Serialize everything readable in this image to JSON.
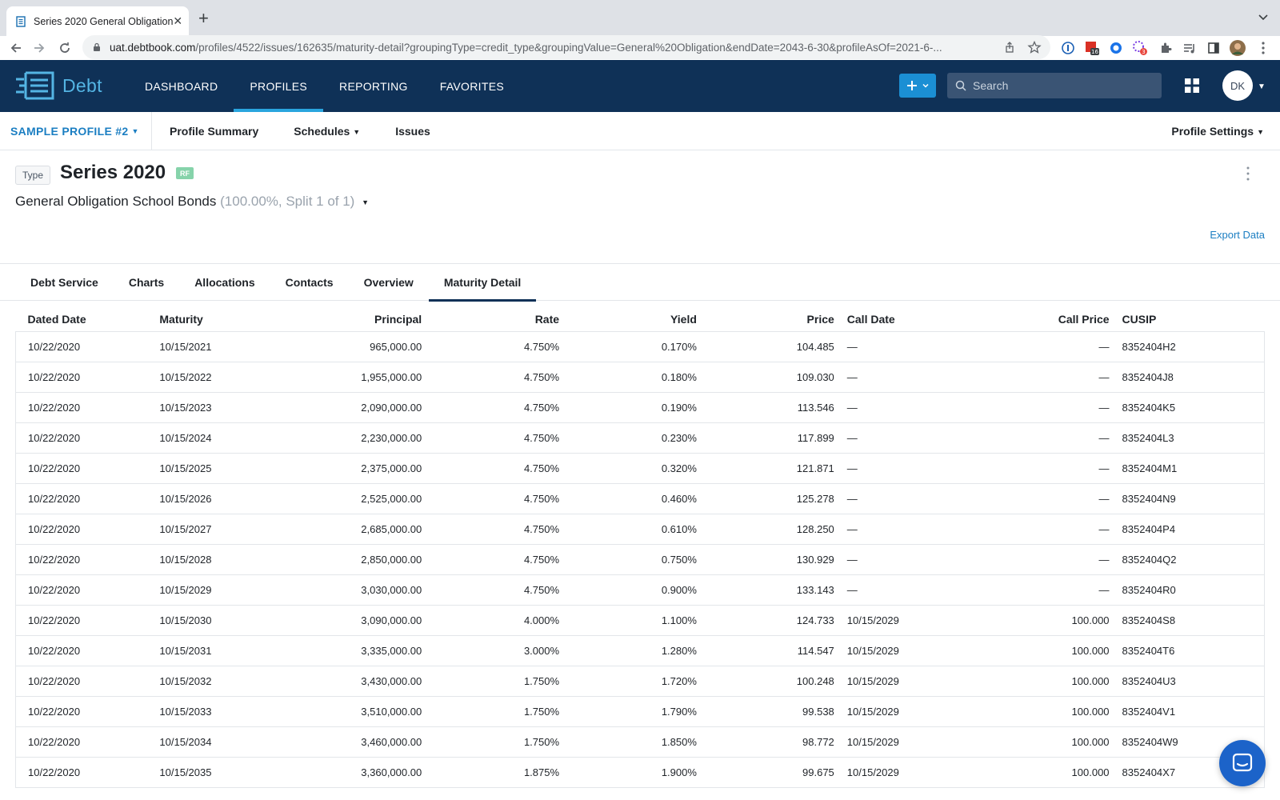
{
  "browser": {
    "tab_title": "Series 2020 General Obligation",
    "url_host": "uat.debtbook.com",
    "url_path": "/profiles/4522/issues/162635/maturity-detail?groupingType=credit_type&groupingValue=General%20Obligation&endDate=2043-6-30&profileAsOf=2021-6-...",
    "ext_badge_1": "16",
    "ext_badge_2": "3"
  },
  "app": {
    "logo_text": "Debt",
    "nav": [
      "DASHBOARD",
      "PROFILES",
      "REPORTING",
      "FAVORITES"
    ],
    "search_placeholder": "Search",
    "avatar_initials": "DK",
    "colors": {
      "header": "#0f3157",
      "accent": "#2aa5de",
      "link": "#1b7ec2"
    }
  },
  "subnav": {
    "profile": "SAMPLE PROFILE #2",
    "items": [
      "Profile Summary",
      "Schedules",
      "Issues"
    ],
    "settings": "Profile Settings"
  },
  "issue": {
    "type_label": "Type",
    "title": "Series 2020",
    "badge": "RF",
    "subtitle": "General Obligation School Bonds",
    "subtitle_meta": "(100.00%, Split 1 of 1)",
    "export_label": "Export Data"
  },
  "tabs": [
    "Debt Service",
    "Charts",
    "Allocations",
    "Contacts",
    "Overview",
    "Maturity Detail"
  ],
  "table": {
    "headers": [
      "Dated Date",
      "Maturity",
      "Principal",
      "Rate",
      "Yield",
      "Price",
      "Call Date",
      "Call Price",
      "CUSIP"
    ],
    "rows": [
      [
        "10/22/2020",
        "10/15/2021",
        "965,000.00",
        "4.750%",
        "0.170%",
        "104.485",
        "—",
        "—",
        "8352404H2"
      ],
      [
        "10/22/2020",
        "10/15/2022",
        "1,955,000.00",
        "4.750%",
        "0.180%",
        "109.030",
        "—",
        "—",
        "8352404J8"
      ],
      [
        "10/22/2020",
        "10/15/2023",
        "2,090,000.00",
        "4.750%",
        "0.190%",
        "113.546",
        "—",
        "—",
        "8352404K5"
      ],
      [
        "10/22/2020",
        "10/15/2024",
        "2,230,000.00",
        "4.750%",
        "0.230%",
        "117.899",
        "—",
        "—",
        "8352404L3"
      ],
      [
        "10/22/2020",
        "10/15/2025",
        "2,375,000.00",
        "4.750%",
        "0.320%",
        "121.871",
        "—",
        "—",
        "8352404M1"
      ],
      [
        "10/22/2020",
        "10/15/2026",
        "2,525,000.00",
        "4.750%",
        "0.460%",
        "125.278",
        "—",
        "—",
        "8352404N9"
      ],
      [
        "10/22/2020",
        "10/15/2027",
        "2,685,000.00",
        "4.750%",
        "0.610%",
        "128.250",
        "—",
        "—",
        "8352404P4"
      ],
      [
        "10/22/2020",
        "10/15/2028",
        "2,850,000.00",
        "4.750%",
        "0.750%",
        "130.929",
        "—",
        "—",
        "8352404Q2"
      ],
      [
        "10/22/2020",
        "10/15/2029",
        "3,030,000.00",
        "4.750%",
        "0.900%",
        "133.143",
        "—",
        "—",
        "8352404R0"
      ],
      [
        "10/22/2020",
        "10/15/2030",
        "3,090,000.00",
        "4.000%",
        "1.100%",
        "124.733",
        "10/15/2029",
        "100.000",
        "8352404S8"
      ],
      [
        "10/22/2020",
        "10/15/2031",
        "3,335,000.00",
        "3.000%",
        "1.280%",
        "114.547",
        "10/15/2029",
        "100.000",
        "8352404T6"
      ],
      [
        "10/22/2020",
        "10/15/2032",
        "3,430,000.00",
        "1.750%",
        "1.720%",
        "100.248",
        "10/15/2029",
        "100.000",
        "8352404U3"
      ],
      [
        "10/22/2020",
        "10/15/2033",
        "3,510,000.00",
        "1.750%",
        "1.790%",
        "99.538",
        "10/15/2029",
        "100.000",
        "8352404V1"
      ],
      [
        "10/22/2020",
        "10/15/2034",
        "3,460,000.00",
        "1.750%",
        "1.850%",
        "98.772",
        "10/15/2029",
        "100.000",
        "8352404W9"
      ],
      [
        "10/22/2020",
        "10/15/2035",
        "3,360,000.00",
        "1.875%",
        "1.900%",
        "99.675",
        "10/15/2029",
        "100.000",
        "8352404X7"
      ]
    ]
  }
}
